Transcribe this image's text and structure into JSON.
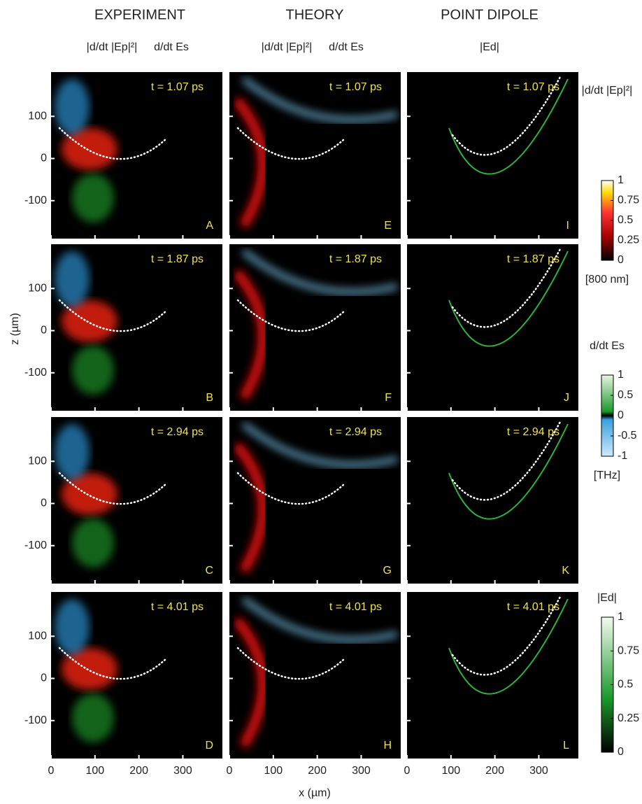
{
  "columns": [
    {
      "title": "EXPERIMENT",
      "labels": [
        "|d/dt |Ep|²|",
        "d/dt Es"
      ]
    },
    {
      "title": "THEORY",
      "labels": [
        "|d/dt |Ep|²|",
        "d/dt Es"
      ]
    },
    {
      "title": "POINT DIPOLE",
      "labels": [
        "|Ed|"
      ]
    }
  ],
  "panels": [
    {
      "time": "t = 1.07 ps",
      "letter": "A"
    },
    {
      "time": "t = 1.07 ps",
      "letter": "E"
    },
    {
      "time": "t = 1.07 ps",
      "letter": "I"
    },
    {
      "time": "t = 1.87 ps",
      "letter": "B"
    },
    {
      "time": "t = 1.87 ps",
      "letter": "F"
    },
    {
      "time": "t = 1.87 ps",
      "letter": "J"
    },
    {
      "time": "t = 2.94 ps",
      "letter": "C"
    },
    {
      "time": "t = 2.94 ps",
      "letter": "G"
    },
    {
      "time": "t = 2.94 ps",
      "letter": "K"
    },
    {
      "time": "t = 4.01 ps",
      "letter": "D"
    },
    {
      "time": "t = 4.01 ps",
      "letter": "H"
    },
    {
      "time": "t = 4.01 ps",
      "letter": "L"
    }
  ],
  "axes": {
    "xlabel": "x (µm)",
    "ylabel": "z (µm)",
    "xlim": [
      0,
      390
    ],
    "zlim": [
      -190,
      205
    ],
    "xticks": [
      0,
      100,
      200,
      300
    ],
    "zticks": [
      100,
      0,
      -100
    ]
  },
  "colorbars": [
    {
      "title": "|d/dt |Ep|²|",
      "unit": "[800 nm]",
      "lim": [
        0,
        1
      ],
      "ticks": [
        1,
        0.75,
        0.5,
        0.25,
        0
      ]
    },
    {
      "title": "d/dt Es",
      "unit": "[THz]",
      "lim": [
        -1,
        1
      ],
      "ticks": [
        1,
        0.5,
        0,
        -0.5,
        -1
      ]
    },
    {
      "title": "|Ed|",
      "unit": null,
      "lim": [
        0,
        1
      ],
      "ticks": [
        1,
        0.75,
        0.5,
        0.25,
        0
      ]
    }
  ]
}
